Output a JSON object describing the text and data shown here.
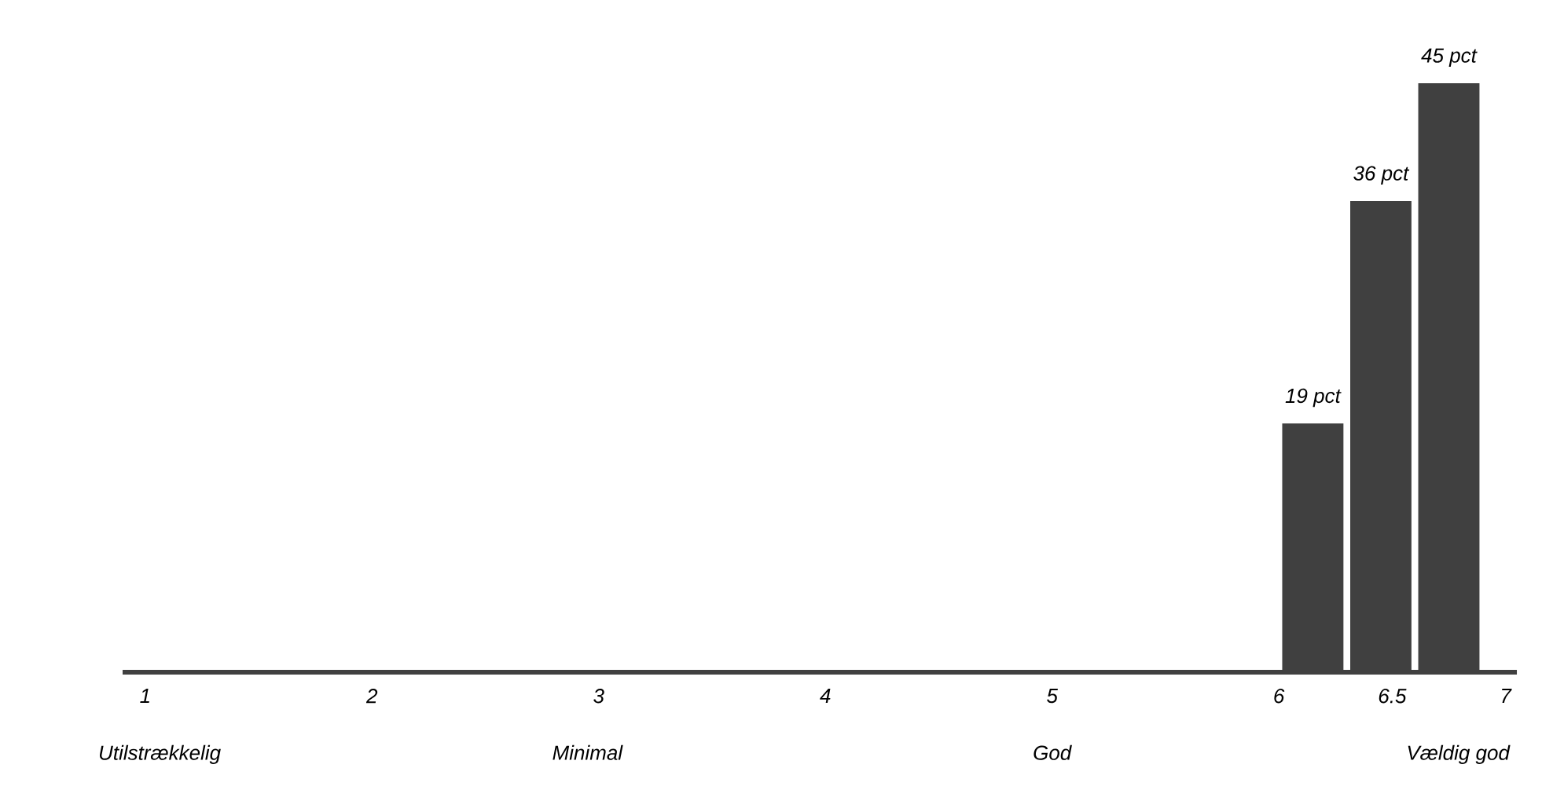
{
  "chart_data": {
    "type": "bar",
    "x": [
      6.15,
      6.45,
      6.75
    ],
    "values": [
      19,
      36,
      45
    ],
    "value_labels": [
      "19 pct",
      "36 pct",
      "45 pct"
    ],
    "color": "#404040",
    "xlim": [
      0.9,
      7.05
    ],
    "xticks": [
      1,
      2,
      3,
      4,
      5,
      6,
      6.5,
      7
    ],
    "annotations": [
      "Utilstrækkelig",
      "Minimal",
      "God",
      "Vældig god"
    ]
  }
}
